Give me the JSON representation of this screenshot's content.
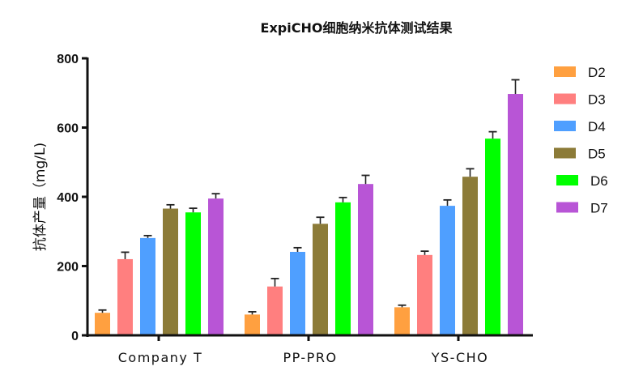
{
  "chart_data": {
    "type": "bar",
    "title": "ExpiCHO细胞纳米抗体测试结果",
    "xlabel": "",
    "ylabel": "抗体产量（mg/L)",
    "ylim": [
      0,
      800
    ],
    "yticks": [
      0,
      200,
      400,
      600,
      800
    ],
    "grid": false,
    "legend_position": "right",
    "categories": [
      "Company T",
      "PP-PRO",
      "YS-CHO"
    ],
    "series": [
      {
        "name": "D2",
        "color": "#FFA040",
        "values": [
          65,
          60,
          81
        ],
        "error": [
          8,
          8,
          6
        ]
      },
      {
        "name": "D3",
        "color": "#FF7F7F",
        "values": [
          220,
          141,
          232
        ],
        "error": [
          20,
          23,
          11
        ]
      },
      {
        "name": "D4",
        "color": "#4F9FFF",
        "values": [
          281,
          241,
          374
        ],
        "error": [
          7,
          12,
          17
        ]
      },
      {
        "name": "D5",
        "color": "#8C7B38",
        "values": [
          366,
          322,
          458
        ],
        "error": [
          11,
          19,
          23
        ]
      },
      {
        "name": "D6",
        "color": "#00FF00",
        "values": [
          355,
          384,
          568
        ],
        "error": [
          12,
          14,
          20
        ]
      },
      {
        "name": "D7",
        "color": "#B855D6",
        "values": [
          395,
          437,
          697
        ],
        "error": [
          14,
          25,
          41
        ]
      }
    ]
  }
}
